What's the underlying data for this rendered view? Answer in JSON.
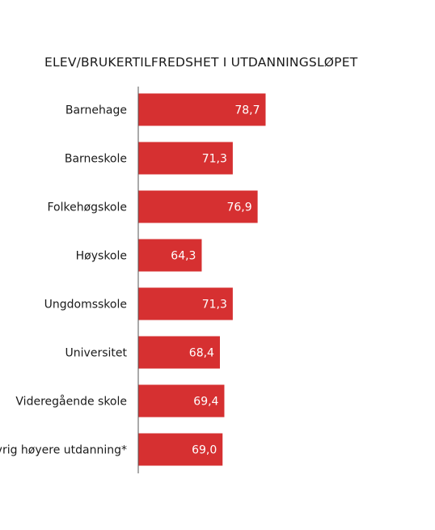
{
  "chart_data": {
    "type": "bar",
    "orientation": "horizontal",
    "title": "ELEV/BRUKERTILFREDSHET I UTDANNINGSLØPET",
    "xlabel": "",
    "ylabel": "",
    "categories": [
      "Barnehage",
      "Barneskole",
      "Folkehøgskole",
      "Høyskole",
      "Ungdomsskole",
      "Universitet",
      "Videregående skole",
      "Øvrig høyere utdanning*"
    ],
    "values": [
      78.7,
      71.3,
      76.9,
      64.3,
      71.3,
      68.4,
      69.4,
      69.0
    ],
    "value_labels": [
      "78,7",
      "71,3",
      "76,9",
      "64,3",
      "71,3",
      "68,4",
      "69,4",
      "69,0"
    ],
    "xlim": [
      50,
      80
    ],
    "grid": false,
    "legend": "none",
    "colors": {
      "bar": "#d63031",
      "bar_label": "#ffffff",
      "axis": "#555555",
      "text": "#1a1a1a"
    }
  }
}
